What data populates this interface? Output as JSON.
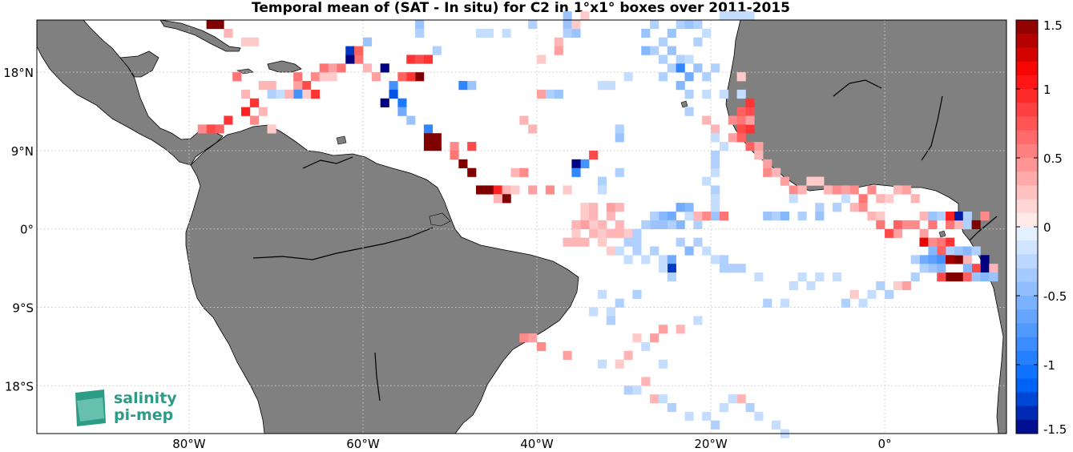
{
  "title": "Temporal mean of (SAT - In situ) for C2 in 1°x1° boxes over 2011-2015",
  "colorbar": {
    "ticks": [
      "1.5",
      "1",
      "0.5",
      "0",
      "-0.5",
      "-1",
      "-1.5"
    ],
    "min": -1.5,
    "max": 1.5
  },
  "x_ticks": [
    {
      "lon": -80,
      "label": "80°W"
    },
    {
      "lon": -60,
      "label": "60°W"
    },
    {
      "lon": -40,
      "label": "40°W"
    },
    {
      "lon": -20,
      "label": "20°W"
    },
    {
      "lon": 0,
      "label": "0°"
    }
  ],
  "y_ticks": [
    {
      "lat": 18,
      "label": "18°N"
    },
    {
      "lat": 9,
      "label": "9°N"
    },
    {
      "lat": 0,
      "label": "0°"
    },
    {
      "lat": -9,
      "label": "9°S"
    },
    {
      "lat": -18,
      "label": "18°S"
    }
  ],
  "extent": {
    "lon_min": -97.5,
    "lon_max": 14,
    "lat_min": -23.5,
    "lat_max": 24
  },
  "logo": {
    "line1": "salinity",
    "line2": "pi-mep"
  },
  "colors": {
    "land": "#808080",
    "grid": "#c8c8c8"
  },
  "boxes": [
    [
      -78,
      23,
      1.5
    ],
    [
      -77,
      23,
      1.5
    ],
    [
      -76,
      22,
      0.3
    ],
    [
      -74,
      21,
      0.2
    ],
    [
      -73,
      21,
      0.2
    ],
    [
      -75,
      17,
      0.6
    ],
    [
      -74,
      15,
      0.3
    ],
    [
      -73,
      14,
      0.9
    ],
    [
      -74,
      13,
      1.0
    ],
    [
      -72,
      13,
      0.3
    ],
    [
      -76,
      12,
      0.9
    ],
    [
      -77,
      11,
      0.7
    ],
    [
      -78,
      11,
      0.8
    ],
    [
      -79,
      11,
      0.5
    ],
    [
      -73,
      12,
      0.5
    ],
    [
      -71,
      11,
      0.2
    ],
    [
      -72,
      16,
      0.3
    ],
    [
      -71,
      16,
      0.3
    ],
    [
      -71,
      15,
      -0.3
    ],
    [
      -70,
      15,
      -0.2
    ],
    [
      -68,
      17,
      0.6
    ],
    [
      -67,
      16,
      0.8
    ],
    [
      -66,
      17,
      0.5
    ],
    [
      -65,
      17,
      0.2
    ],
    [
      -68,
      16,
      0.4
    ],
    [
      -66,
      15,
      0.9
    ],
    [
      -67,
      15,
      0.2
    ],
    [
      -68,
      15,
      -0.8
    ],
    [
      -69,
      15,
      0.3
    ],
    [
      -64,
      18,
      0.4
    ],
    [
      -65,
      18,
      0.6
    ],
    [
      -63,
      18,
      0.6
    ],
    [
      -64,
      17,
      0.2
    ],
    [
      -61,
      19,
      0.6
    ],
    [
      -62,
      19,
      -1.5
    ],
    [
      -62,
      20,
      -1.3
    ],
    [
      -60,
      21,
      -0.4
    ],
    [
      -61,
      20,
      0.7
    ],
    [
      -60,
      18,
      0.3
    ],
    [
      -59,
      17,
      0.4
    ],
    [
      -58,
      18,
      -1.5
    ],
    [
      -55,
      19,
      0.9
    ],
    [
      -54,
      19,
      0.8
    ],
    [
      -53,
      19,
      0.9
    ],
    [
      -54,
      17,
      1.5
    ],
    [
      -55,
      17,
      0.9
    ],
    [
      -56,
      17,
      0.7
    ],
    [
      -57,
      16,
      -0.8
    ],
    [
      -57,
      15,
      -1.2
    ],
    [
      -56,
      14,
      -1.0
    ],
    [
      -58,
      14,
      -1.5
    ],
    [
      -56,
      13,
      -0.6
    ],
    [
      -55,
      12,
      -0.4
    ],
    [
      -53,
      11,
      -0.9
    ],
    [
      -54,
      23,
      -0.4
    ],
    [
      -54,
      22,
      -0.3
    ],
    [
      -52,
      20,
      -0.3
    ],
    [
      -53,
      10,
      1.5
    ],
    [
      -52,
      10,
      1.5
    ],
    [
      -53,
      9,
      1.5
    ],
    [
      -52,
      9,
      1.5
    ],
    [
      -50,
      9,
      0.5
    ],
    [
      -48,
      9,
      0.8
    ],
    [
      -50,
      8,
      0.6
    ],
    [
      -49,
      7,
      1.5
    ],
    [
      -48,
      6,
      1.5
    ],
    [
      -47,
      4,
      1.5
    ],
    [
      -46,
      4,
      1.5
    ],
    [
      -45,
      4,
      1.0
    ],
    [
      -44,
      4,
      0.3
    ],
    [
      -44,
      3,
      1.5
    ],
    [
      -43,
      4,
      0.2
    ],
    [
      -45,
      3,
      0.3
    ],
    [
      -43,
      6,
      0.3
    ],
    [
      -42,
      6,
      0.5
    ],
    [
      -41,
      4,
      0.4
    ],
    [
      -39,
      4,
      0.5
    ],
    [
      -37,
      4,
      0.2
    ],
    [
      -49,
      16,
      -0.9
    ],
    [
      -48,
      16,
      -0.4
    ],
    [
      -47,
      22,
      -0.2
    ],
    [
      -46,
      22,
      -0.2
    ],
    [
      -44,
      22,
      -0.2
    ],
    [
      -41,
      23,
      -0.3
    ],
    [
      -42,
      12,
      0.3
    ],
    [
      -41,
      11,
      0.3
    ],
    [
      -40,
      15,
      0.4
    ],
    [
      -39,
      15,
      -0.3
    ],
    [
      -38,
      15,
      -0.4
    ],
    [
      -40,
      19,
      0.2
    ],
    [
      -38,
      21,
      0.3
    ],
    [
      -38,
      20,
      0.4
    ],
    [
      -37,
      24,
      -0.4
    ],
    [
      -37,
      23,
      -0.4
    ],
    [
      -37,
      22,
      -0.3
    ],
    [
      -36,
      22,
      -0.4
    ],
    [
      -36,
      23,
      0.2
    ],
    [
      -35,
      24,
      0.2
    ],
    [
      -33,
      16,
      -0.2
    ],
    [
      -32,
      16,
      -0.2
    ],
    [
      -34,
      8,
      0.8
    ],
    [
      -35,
      7,
      -0.8
    ],
    [
      -36,
      7,
      -1.5
    ],
    [
      -36,
      6,
      -0.9
    ],
    [
      -33,
      5,
      -0.3
    ],
    [
      -33,
      4,
      -0.2
    ],
    [
      -31,
      11,
      -0.3
    ],
    [
      -31,
      10,
      -0.4
    ],
    [
      -31,
      6,
      -0.3
    ],
    [
      -35,
      2,
      0.2
    ],
    [
      -34,
      2,
      0.3
    ],
    [
      -35,
      1,
      0.2
    ],
    [
      -34,
      1,
      0.3
    ],
    [
      -32,
      1,
      0.3
    ],
    [
      -32,
      2,
      0.4
    ],
    [
      -31,
      2,
      0.3
    ],
    [
      -33,
      0,
      0.3
    ],
    [
      -34,
      0,
      0.2
    ],
    [
      -35,
      0,
      0.4
    ],
    [
      -36,
      0,
      0.3
    ],
    [
      -36,
      -1,
      0.2
    ],
    [
      -34,
      -1,
      0.3
    ],
    [
      -33,
      -1,
      0.2
    ],
    [
      -32,
      -1,
      0.3
    ],
    [
      -31,
      -1,
      0.3
    ],
    [
      -30,
      -1,
      0.2
    ],
    [
      -31,
      0,
      0.3
    ],
    [
      -37,
      -2,
      0.3
    ],
    [
      -36,
      -2,
      0.3
    ],
    [
      -35,
      -2,
      0.3
    ],
    [
      -33,
      -2,
      0.2
    ],
    [
      -32,
      -3,
      0.2
    ],
    [
      -31,
      -3,
      -0.2
    ],
    [
      -30,
      -2,
      -0.3
    ],
    [
      -29,
      -2,
      -0.3
    ],
    [
      -30,
      -4,
      -0.2
    ],
    [
      -29,
      -3,
      -0.3
    ],
    [
      -27,
      -3,
      -0.3
    ],
    [
      -26,
      -4,
      -0.2
    ],
    [
      -28,
      -4,
      -0.2
    ],
    [
      -29,
      -1,
      -0.3
    ],
    [
      -28,
      0,
      -0.3
    ],
    [
      -27,
      0,
      -0.4
    ],
    [
      -26,
      1,
      -0.5
    ],
    [
      -25,
      1,
      -0.6
    ],
    [
      -27,
      1,
      -0.3
    ],
    [
      -24,
      2,
      -0.4
    ],
    [
      -23,
      1,
      -0.2
    ],
    [
      -22,
      1,
      0.3
    ],
    [
      -22,
      0,
      -0.3
    ],
    [
      -24,
      0,
      -0.5
    ],
    [
      -25,
      0,
      -0.3
    ],
    [
      -26,
      0,
      -0.4
    ],
    [
      -21,
      1,
      0.5
    ],
    [
      -20,
      1,
      -0.4
    ],
    [
      -19,
      1,
      0.6
    ],
    [
      -24,
      2,
      -0.6
    ],
    [
      -23,
      2,
      -0.5
    ],
    [
      -23,
      -3,
      -0.5
    ],
    [
      -25,
      -4,
      -0.6
    ],
    [
      -25,
      -5,
      -1.3
    ],
    [
      -25,
      -6,
      -0.3
    ],
    [
      -26,
      -5,
      -0.2
    ],
    [
      -24,
      -2,
      -0.3
    ],
    [
      -29,
      -8,
      -0.3
    ],
    [
      -31,
      -9,
      -0.3
    ],
    [
      -32,
      -10,
      -0.2
    ],
    [
      -33,
      -8,
      -0.2
    ],
    [
      -22,
      -11,
      -0.2
    ],
    [
      -24,
      -12,
      0.3
    ],
    [
      -26,
      -12,
      0.4
    ],
    [
      -27,
      -13,
      0.4
    ],
    [
      -29,
      -13,
      0.2
    ],
    [
      -28,
      -14,
      -0.2
    ],
    [
      -26,
      -16,
      -0.2
    ],
    [
      -30,
      -15,
      0.3
    ],
    [
      -31,
      -16,
      0.2
    ],
    [
      -40,
      -14,
      0.5
    ],
    [
      -41,
      -13,
      0.4
    ],
    [
      -42,
      -13,
      0.5
    ],
    [
      -37,
      -15,
      0.4
    ],
    [
      -33,
      -16,
      -0.2
    ],
    [
      -28,
      -18,
      0.3
    ],
    [
      -30,
      -19,
      -0.3
    ],
    [
      -29,
      -19,
      -0.2
    ],
    [
      -34,
      -10,
      -0.2
    ],
    [
      -32,
      -11,
      -0.3
    ],
    [
      -27,
      -20,
      0.3
    ],
    [
      -26,
      -20,
      -0.2
    ],
    [
      -25,
      -21,
      -0.3
    ],
    [
      -23,
      -22,
      -0.2
    ],
    [
      -21,
      -22,
      -0.2
    ],
    [
      -20,
      -23,
      -0.3
    ],
    [
      -19,
      -21,
      -0.2
    ],
    [
      -17,
      -20,
      0.3
    ],
    [
      -16,
      -21,
      -0.3
    ],
    [
      -15,
      -22,
      -0.2
    ],
    [
      -13,
      -23,
      -0.2
    ],
    [
      -12,
      -24,
      -0.2
    ],
    [
      -18,
      -20,
      -0.2
    ],
    [
      -28,
      22,
      -0.4
    ],
    [
      -27,
      23,
      -0.3
    ],
    [
      -26,
      21,
      -0.3
    ],
    [
      -25,
      22,
      -0.4
    ],
    [
      -24,
      23,
      -0.3
    ],
    [
      -23,
      23,
      -0.4
    ],
    [
      -22,
      23,
      -0.3
    ],
    [
      -21,
      22,
      -0.2
    ],
    [
      -22,
      21,
      -0.3
    ],
    [
      -25,
      20,
      -0.4
    ],
    [
      -27,
      20,
      -0.3
    ],
    [
      -28,
      20,
      -0.5
    ],
    [
      -26,
      19,
      -0.3
    ],
    [
      -24,
      19,
      -0.3
    ],
    [
      -23,
      19,
      -0.2
    ],
    [
      -22,
      18,
      -0.3
    ],
    [
      -25,
      18,
      -0.3
    ],
    [
      -24,
      18,
      -0.9
    ],
    [
      -23,
      17,
      -0.6
    ],
    [
      -22,
      18,
      -0.4
    ],
    [
      -21,
      17,
      -0.3
    ],
    [
      -24,
      16,
      -0.5
    ],
    [
      -23,
      15,
      -0.3
    ],
    [
      -21,
      15,
      -0.2
    ],
    [
      -20,
      18,
      -0.3
    ],
    [
      -17,
      17,
      0.2
    ],
    [
      -19,
      15,
      -0.2
    ],
    [
      -17,
      15,
      -0.2
    ],
    [
      -30,
      17,
      -0.2
    ],
    [
      -26,
      17,
      -0.3
    ],
    [
      -23,
      13,
      -0.3
    ],
    [
      -17,
      24,
      -0.2
    ],
    [
      -18,
      24,
      -0.2
    ],
    [
      -19,
      24,
      -0.2
    ],
    [
      -16,
      24,
      -0.2
    ],
    [
      -21,
      12,
      0.3
    ],
    [
      -20,
      11,
      0.3
    ],
    [
      -18,
      12,
      0.5
    ],
    [
      -17,
      12,
      0.6
    ],
    [
      -17,
      11,
      0.8
    ],
    [
      -16,
      11,
      0.9
    ],
    [
      -18,
      10,
      0.4
    ],
    [
      -17,
      10,
      0.7
    ],
    [
      -16,
      9,
      0.7
    ],
    [
      -15,
      9,
      0.4
    ],
    [
      -17,
      13,
      0.7
    ],
    [
      -16,
      13,
      0.8
    ],
    [
      -16,
      14,
      0.9
    ],
    [
      -16,
      12,
      0.4
    ],
    [
      -15,
      8,
      0.3
    ],
    [
      -14,
      7,
      0.4
    ],
    [
      -14,
      6,
      0.5
    ],
    [
      -13,
      6,
      0.3
    ],
    [
      -12,
      5,
      0.4
    ],
    [
      -11,
      4,
      0.5
    ],
    [
      -10,
      4,
      0.3
    ],
    [
      -9,
      5,
      0.2
    ],
    [
      -8,
      5,
      0.2
    ],
    [
      -7,
      4,
      0.3
    ],
    [
      -6,
      4,
      0.5
    ],
    [
      -5,
      4,
      0.4
    ],
    [
      -4,
      4,
      0.5
    ],
    [
      -3,
      3,
      0.6
    ],
    [
      -2,
      4,
      0.5
    ],
    [
      -1,
      3,
      0.3
    ],
    [
      0,
      3,
      0.2
    ],
    [
      1,
      4,
      0.3
    ],
    [
      2,
      4,
      0.4
    ],
    [
      3,
      3,
      0.3
    ],
    [
      -11,
      3,
      -0.2
    ],
    [
      -8,
      2,
      -0.3
    ],
    [
      -6,
      2,
      0.2
    ],
    [
      -3,
      2,
      0.5
    ],
    [
      -2,
      1,
      0.3
    ],
    [
      -1,
      1,
      0.2
    ],
    [
      -14,
      1,
      -0.4
    ],
    [
      -13,
      1,
      -0.3
    ],
    [
      -12,
      1,
      -0.5
    ],
    [
      -10,
      1,
      -0.3
    ],
    [
      -8,
      1,
      -0.4
    ],
    [
      -6,
      2,
      -0.3
    ],
    [
      -5,
      3,
      -0.2
    ],
    [
      -4,
      2,
      0.3
    ],
    [
      -20,
      2,
      -0.2
    ],
    [
      -20,
      4,
      -0.3
    ],
    [
      -20,
      3,
      -0.2
    ],
    [
      -20,
      6,
      -0.2
    ],
    [
      -20,
      7,
      -0.3
    ],
    [
      -20,
      8,
      -0.3
    ],
    [
      -19,
      9,
      -0.2
    ],
    [
      -20,
      10,
      -0.2
    ],
    [
      -21,
      5,
      -0.2
    ],
    [
      -1,
      0,
      0.6
    ],
    [
      0,
      -1,
      0.8
    ],
    [
      1,
      0,
      0.7
    ],
    [
      1,
      -1,
      0.4
    ],
    [
      2,
      0,
      0.5
    ],
    [
      3,
      0,
      0.5
    ],
    [
      4,
      1,
      0.3
    ],
    [
      5,
      1,
      -0.4
    ],
    [
      5,
      0,
      0.6
    ],
    [
      6,
      1,
      -0.3
    ],
    [
      7,
      0,
      0.6
    ],
    [
      7,
      1,
      1.0
    ],
    [
      8,
      0,
      0.3
    ],
    [
      8,
      1,
      -1.4
    ],
    [
      9,
      1,
      -0.3
    ],
    [
      9,
      0,
      -0.3
    ],
    [
      10,
      0,
      1.5
    ],
    [
      11,
      1,
      0.5
    ],
    [
      4,
      -1,
      0.4
    ],
    [
      4,
      -2,
      1.2
    ],
    [
      5,
      -2,
      0.5
    ],
    [
      6,
      -2,
      0.6
    ],
    [
      7,
      -2,
      0.9
    ],
    [
      7,
      -3,
      -0.3
    ],
    [
      6,
      -3,
      0.7
    ],
    [
      5,
      -3,
      -0.5
    ],
    [
      4,
      -4,
      -0.6
    ],
    [
      3,
      -4,
      -0.3
    ],
    [
      5,
      -4,
      -0.7
    ],
    [
      6,
      -4,
      -0.8
    ],
    [
      7,
      -4,
      1.4
    ],
    [
      8,
      -4,
      1.5
    ],
    [
      9,
      -4,
      0.3
    ],
    [
      8,
      -3,
      -0.4
    ],
    [
      9,
      -3,
      -0.5
    ],
    [
      10,
      -3,
      -0.3
    ],
    [
      11,
      -4,
      -1.5
    ],
    [
      11,
      -5,
      -1.5
    ],
    [
      12,
      -5,
      0.3
    ],
    [
      10,
      -5,
      0.8
    ],
    [
      9,
      -5,
      -0.5
    ],
    [
      8,
      -6,
      1.5
    ],
    [
      7,
      -6,
      1.5
    ],
    [
      6,
      -6,
      0.8
    ],
    [
      5,
      -5,
      -0.4
    ],
    [
      4,
      -5,
      -0.3
    ],
    [
      9,
      -6,
      0.7
    ],
    [
      10,
      -6,
      -0.4
    ],
    [
      11,
      -6,
      -0.5
    ],
    [
      12,
      -6,
      -0.4
    ],
    [
      6,
      -5,
      -0.5
    ],
    [
      3,
      -6,
      -0.3
    ],
    [
      2,
      -7,
      0.4
    ],
    [
      1,
      -7,
      0.2
    ],
    [
      -1,
      -7,
      -0.3
    ],
    [
      0,
      -8,
      -0.3
    ],
    [
      -2,
      -8,
      -0.2
    ],
    [
      -3,
      -9,
      -0.2
    ],
    [
      -4,
      -8,
      0.2
    ],
    [
      -5,
      -9,
      -0.3
    ],
    [
      -6,
      -6,
      -0.2
    ],
    [
      -8,
      -6,
      -0.2
    ],
    [
      -9,
      -7,
      -0.2
    ],
    [
      -10,
      -6,
      -0.2
    ],
    [
      -11,
      -7,
      -0.2
    ],
    [
      -12,
      -9,
      -0.2
    ],
    [
      -14,
      -9,
      -0.3
    ],
    [
      -15,
      -6,
      -0.2
    ],
    [
      -17,
      -5,
      -0.3
    ],
    [
      -18,
      -5,
      -0.3
    ],
    [
      -19,
      -5,
      -0.3
    ],
    [
      -20,
      -4,
      -0.2
    ],
    [
      -21,
      -3,
      -0.2
    ],
    [
      -22,
      -2,
      -0.3
    ],
    [
      -19,
      -4,
      -0.3
    ]
  ]
}
